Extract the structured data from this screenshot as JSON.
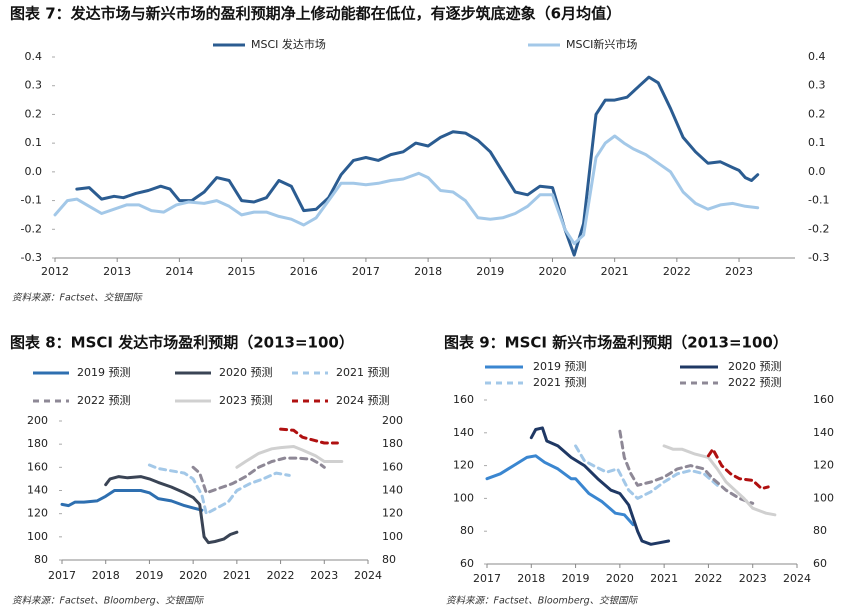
{
  "chart_data": [
    {
      "type": "line",
      "title": "图表 7：发达市场与新兴市场的盈利预期净上修动能都在低位，有逐步筑底迹象（6月均值）",
      "note": "资料来源：Factset、交银国际",
      "mirror_y_axis": true,
      "xlim": [
        2012,
        2023.9
      ],
      "xticks": [
        2012,
        2013,
        2014,
        2015,
        2016,
        2017,
        2018,
        2019,
        2020,
        2021,
        2022,
        2023
      ],
      "ylim": [
        -0.3,
        0.4
      ],
      "yticks": [
        0.4,
        0.3,
        0.2,
        0.1,
        {
          "value": 0,
          "label": "0.0"
        },
        -0.1,
        -0.2,
        -0.3
      ],
      "series": [
        {
          "name": "MSCI 发达市场",
          "color": "#2b5c91",
          "dashed": false,
          "x": [
            2012.35,
            2012.55,
            2012.75,
            2012.95,
            2013.1,
            2013.3,
            2013.5,
            2013.7,
            2013.85,
            2014.0,
            2014.2,
            2014.4,
            2014.6,
            2014.8,
            2015.0,
            2015.2,
            2015.4,
            2015.6,
            2015.8,
            2016.0,
            2016.2,
            2016.4,
            2016.6,
            2016.8,
            2017.0,
            2017.2,
            2017.4,
            2017.6,
            2017.8,
            2018.0,
            2018.2,
            2018.4,
            2018.6,
            2018.8,
            2019.0,
            2019.2,
            2019.4,
            2019.6,
            2019.8,
            2020.0,
            2020.2,
            2020.35,
            2020.5,
            2020.7,
            2020.85,
            2021.0,
            2021.2,
            2021.4,
            2021.55,
            2021.7,
            2021.9,
            2022.1,
            2022.3,
            2022.5,
            2022.7,
            2022.9,
            2023.0,
            2023.1,
            2023.2,
            2023.3
          ],
          "values": [
            -0.06,
            -0.055,
            -0.095,
            -0.085,
            -0.09,
            -0.075,
            -0.065,
            -0.05,
            -0.06,
            -0.1,
            -0.1,
            -0.07,
            -0.02,
            -0.03,
            -0.1,
            -0.105,
            -0.09,
            -0.03,
            -0.05,
            -0.135,
            -0.13,
            -0.09,
            -0.01,
            0.04,
            0.05,
            0.04,
            0.06,
            0.07,
            0.1,
            0.09,
            0.12,
            0.14,
            0.135,
            0.11,
            0.07,
            0.0,
            -0.07,
            -0.08,
            -0.05,
            -0.055,
            -0.2,
            -0.29,
            -0.18,
            0.2,
            0.25,
            0.25,
            0.26,
            0.3,
            0.33,
            0.31,
            0.22,
            0.12,
            0.07,
            0.03,
            0.035,
            0.015,
            0.005,
            -0.02,
            -0.03,
            -0.01
          ]
        },
        {
          "name": "MSCI新兴市场",
          "color": "#a3c8e8",
          "dashed": false,
          "x": [
            2012.0,
            2012.2,
            2012.35,
            2012.55,
            2012.75,
            2012.95,
            2013.15,
            2013.35,
            2013.55,
            2013.75,
            2013.95,
            2014.15,
            2014.4,
            2014.6,
            2014.8,
            2015.0,
            2015.2,
            2015.4,
            2015.6,
            2015.8,
            2016.0,
            2016.2,
            2016.4,
            2016.6,
            2016.8,
            2017.0,
            2017.2,
            2017.4,
            2017.6,
            2017.85,
            2018.0,
            2018.2,
            2018.4,
            2018.6,
            2018.8,
            2019.0,
            2019.2,
            2019.4,
            2019.6,
            2019.8,
            2020.0,
            2020.2,
            2020.35,
            2020.5,
            2020.7,
            2020.85,
            2021.0,
            2021.15,
            2021.3,
            2021.5,
            2021.7,
            2021.9,
            2022.1,
            2022.3,
            2022.5,
            2022.7,
            2022.9,
            2023.1,
            2023.3
          ],
          "values": [
            -0.15,
            -0.1,
            -0.095,
            -0.12,
            -0.145,
            -0.13,
            -0.115,
            -0.115,
            -0.135,
            -0.14,
            -0.115,
            -0.105,
            -0.11,
            -0.1,
            -0.12,
            -0.15,
            -0.14,
            -0.14,
            -0.155,
            -0.165,
            -0.185,
            -0.16,
            -0.1,
            -0.04,
            -0.04,
            -0.045,
            -0.04,
            -0.03,
            -0.025,
            -0.005,
            -0.02,
            -0.065,
            -0.07,
            -0.1,
            -0.16,
            -0.165,
            -0.16,
            -0.145,
            -0.12,
            -0.08,
            -0.08,
            -0.2,
            -0.25,
            -0.22,
            0.05,
            0.1,
            0.125,
            0.1,
            0.08,
            0.06,
            0.03,
            0.0,
            -0.07,
            -0.11,
            -0.13,
            -0.115,
            -0.11,
            -0.12,
            -0.125
          ]
        }
      ]
    },
    {
      "type": "line",
      "title": "图表 8：MSCI 发达市场盈利预期（2013=100）",
      "note": "资料来源：Factset、Bloomberg、交银国际",
      "mirror_y_axis": true,
      "xlim": [
        2017,
        2024
      ],
      "xticks": [
        2017,
        2018,
        2019,
        2020,
        2021,
        2022,
        2023,
        2024
      ],
      "ylim": [
        80,
        200
      ],
      "yticks": [
        200,
        180,
        160,
        140,
        120,
        100,
        80
      ],
      "series": [
        {
          "name": "2019 预测",
          "color": "#2e6fb0",
          "dashed": false,
          "x": [
            2017.0,
            2017.15,
            2017.3,
            2017.5,
            2017.8,
            2018.0,
            2018.2,
            2018.5,
            2018.8,
            2019.0,
            2019.2,
            2019.5,
            2019.8,
            2020.0,
            2020.2
          ],
          "values": [
            128,
            127,
            130,
            130,
            131,
            135,
            140,
            140,
            140,
            138,
            133,
            131,
            127,
            125,
            123
          ]
        },
        {
          "name": "2020 预测",
          "color": "#3a4455",
          "dashed": false,
          "x": [
            2018.0,
            2018.1,
            2018.3,
            2018.5,
            2018.8,
            2019.0,
            2019.2,
            2019.5,
            2019.8,
            2020.0,
            2020.15,
            2020.25,
            2020.35,
            2020.5,
            2020.7,
            2020.85,
            2021.0
          ],
          "values": [
            145,
            150,
            152,
            151,
            152,
            150,
            147,
            143,
            138,
            134,
            128,
            100,
            95,
            96,
            98,
            102,
            104
          ]
        },
        {
          "name": "2021 预测",
          "color": "#a3c8e8",
          "dashed": true,
          "x": [
            2019.0,
            2019.2,
            2019.5,
            2019.8,
            2020.0,
            2020.2,
            2020.3,
            2020.5,
            2020.8,
            2021.0,
            2021.3,
            2021.6,
            2021.9,
            2022.2
          ],
          "values": [
            162,
            159,
            157,
            155,
            150,
            136,
            120,
            124,
            130,
            140,
            146,
            150,
            155,
            153
          ]
        },
        {
          "name": "2022 预测",
          "color": "#8e8896",
          "dashed": true,
          "x": [
            2020.0,
            2020.15,
            2020.3,
            2020.6,
            2020.9,
            2021.2,
            2021.5,
            2021.8,
            2022.1,
            2022.4,
            2022.7,
            2022.9,
            2023.0
          ],
          "values": [
            160,
            155,
            138,
            142,
            146,
            152,
            160,
            165,
            168,
            168,
            167,
            163,
            160
          ]
        },
        {
          "name": "2023 预测",
          "color": "#d0d0d0",
          "dashed": false,
          "x": [
            2021.0,
            2021.2,
            2021.5,
            2021.8,
            2022.0,
            2022.3,
            2022.5,
            2022.8,
            2023.0,
            2023.2,
            2023.4
          ],
          "values": [
            160,
            165,
            172,
            176,
            177,
            178,
            175,
            170,
            165,
            165,
            165
          ]
        },
        {
          "name": "2024 预测",
          "color": "#b01010",
          "dashed": true,
          "x": [
            2022.0,
            2022.3,
            2022.5,
            2022.8,
            2023.0,
            2023.3
          ],
          "values": [
            193,
            192,
            186,
            183,
            181,
            181
          ]
        }
      ]
    },
    {
      "type": "line",
      "title": "图表 9：MSCI 新兴市场盈利预期（2013=100）",
      "note": "资料来源：Factset、Bloomberg、交银国际",
      "mirror_y_axis": true,
      "xlim": [
        2017,
        2024
      ],
      "xticks": [
        2017,
        2018,
        2019,
        2020,
        2021,
        2022,
        2023,
        2024
      ],
      "ylim": [
        60,
        160
      ],
      "yticks": [
        160,
        140,
        120,
        100,
        80,
        60
      ],
      "series": [
        {
          "name": "2019 预测",
          "color": "#3a86d0",
          "dashed": false,
          "x": [
            2017.0,
            2017.3,
            2017.6,
            2017.9,
            2018.1,
            2018.3,
            2018.6,
            2018.9,
            2019.0,
            2019.3,
            2019.6,
            2019.9,
            2020.1,
            2020.3
          ],
          "values": [
            112,
            115,
            120,
            125,
            126,
            122,
            118,
            112,
            112,
            103,
            98,
            91,
            90,
            84
          ]
        },
        {
          "name": "2020 预测",
          "color": "#1f3864",
          "dashed": false,
          "x": [
            2018.0,
            2018.1,
            2018.25,
            2018.35,
            2018.6,
            2018.9,
            2019.2,
            2019.5,
            2019.8,
            2020.0,
            2020.2,
            2020.4,
            2020.5,
            2020.7,
            2020.9,
            2021.1
          ],
          "values": [
            137,
            142,
            143,
            135,
            132,
            125,
            120,
            112,
            105,
            103,
            96,
            80,
            74,
            72,
            73,
            74
          ]
        },
        {
          "name": "2021 预测",
          "color": "#a3c8e8",
          "dashed": true,
          "x": [
            2019.0,
            2019.2,
            2019.4,
            2019.7,
            2019.95,
            2020.2,
            2020.4,
            2020.7,
            2021.0,
            2021.3,
            2021.6,
            2021.9,
            2022.2
          ],
          "values": [
            132,
            123,
            120,
            116,
            118,
            105,
            100,
            104,
            110,
            115,
            117,
            115,
            108
          ]
        },
        {
          "name": "2022 预测",
          "color": "#8e8896",
          "dashed": true,
          "x": [
            2020.0,
            2020.1,
            2020.25,
            2020.4,
            2020.7,
            2021.0,
            2021.3,
            2021.6,
            2021.9,
            2022.1,
            2022.4,
            2022.7,
            2023.0
          ],
          "values": [
            141,
            125,
            115,
            108,
            110,
            113,
            118,
            120,
            118,
            112,
            105,
            100,
            97
          ]
        },
        {
          "color": "#d0d0d0",
          "dashed": false,
          "x": [
            2021.0,
            2021.2,
            2021.4,
            2021.7,
            2022.0,
            2022.2,
            2022.4,
            2022.6,
            2022.8,
            2023.0,
            2023.3,
            2023.5
          ],
          "values": [
            132,
            130,
            130,
            127,
            125,
            118,
            110,
            105,
            100,
            94,
            91,
            90
          ]
        },
        {
          "color": "#b01010",
          "dashed": true,
          "x": [
            2022.0,
            2022.1,
            2022.3,
            2022.5,
            2022.7,
            2023.0,
            2023.2,
            2023.35
          ],
          "values": [
            126,
            130,
            120,
            115,
            112,
            111,
            106,
            107
          ]
        }
      ]
    }
  ]
}
